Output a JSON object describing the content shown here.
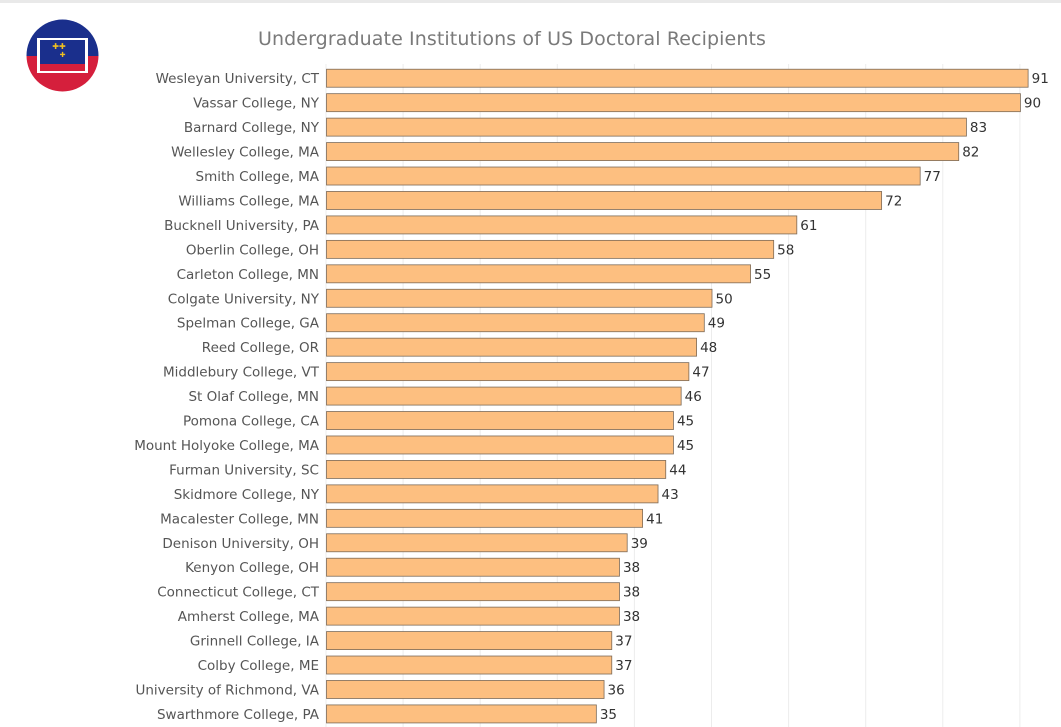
{
  "header": {
    "title": "Undergraduate Institutions of US Doctoral Recipients",
    "logo_icon": "flag-badge-icon"
  },
  "colors": {
    "bar_fill": "#FDBF80",
    "bar_stroke": "#7d6a57",
    "grid": "#ececec",
    "logo_red": "#d51f3c",
    "logo_blue": "#1a2f8c"
  },
  "chart_data": {
    "type": "bar",
    "orientation": "horizontal",
    "title": "Undergraduate Institutions of US Doctoral Recipients",
    "xlabel": "",
    "ylabel": "",
    "xlim": [
      0,
      95
    ],
    "grid": true,
    "categories": [
      "Wesleyan University, CT",
      "Vassar College, NY",
      "Barnard College, NY",
      "Wellesley College, MA",
      "Smith College, MA",
      "Williams College, MA",
      "Bucknell University, PA",
      "Oberlin College, OH",
      "Carleton College, MN",
      "Colgate University, NY",
      "Spelman College, GA",
      "Reed College, OR",
      "Middlebury College, VT",
      "St Olaf College, MN",
      "Pomona College, CA",
      "Mount Holyoke College, MA",
      "Furman University, SC",
      "Skidmore College, NY",
      "Macalester College, MN",
      "Denison University, OH",
      "Kenyon College, OH",
      "Connecticut College, CT",
      "Amherst College, MA",
      "Grinnell College, IA",
      "Colby College, ME",
      "University of Richmond, VA",
      "Swarthmore College, PA"
    ],
    "values": [
      91,
      90,
      83,
      82,
      77,
      72,
      61,
      58,
      55,
      50,
      49,
      48,
      47,
      46,
      45,
      45,
      44,
      43,
      41,
      39,
      38,
      38,
      38,
      37,
      37,
      36,
      35
    ]
  }
}
